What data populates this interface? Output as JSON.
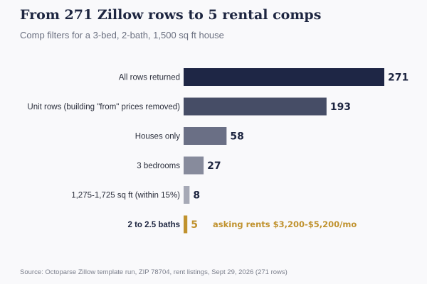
{
  "chart_data": {
    "type": "bar",
    "orientation": "horizontal",
    "title": "From 271 Zillow rows to 5 rental comps",
    "subtitle": "Comp filters for a 3-bed, 2-bath, 1,500 sq ft house",
    "categories": [
      "All rows returned",
      "Unit rows (building \"from\" prices removed)",
      "Houses only",
      "3 bedrooms",
      "1,275-1,725 sq ft (within 15%)",
      "2 to 2.5 baths"
    ],
    "values": [
      271,
      193,
      58,
      27,
      8,
      5
    ],
    "bar_colors": [
      "#1e2645",
      "#464d66",
      "#6a6f85",
      "#878b9c",
      "#a6a9b6",
      "#c0922e"
    ],
    "highlight_index": 5,
    "annotation": "asking rents $3,200-$5,200/mo",
    "xlim": [
      0,
      271
    ],
    "grid": false,
    "source": "Source: Octoparse Zillow template run, ZIP 78704, rent listings, Sept 29, 2026 (271 rows)"
  }
}
